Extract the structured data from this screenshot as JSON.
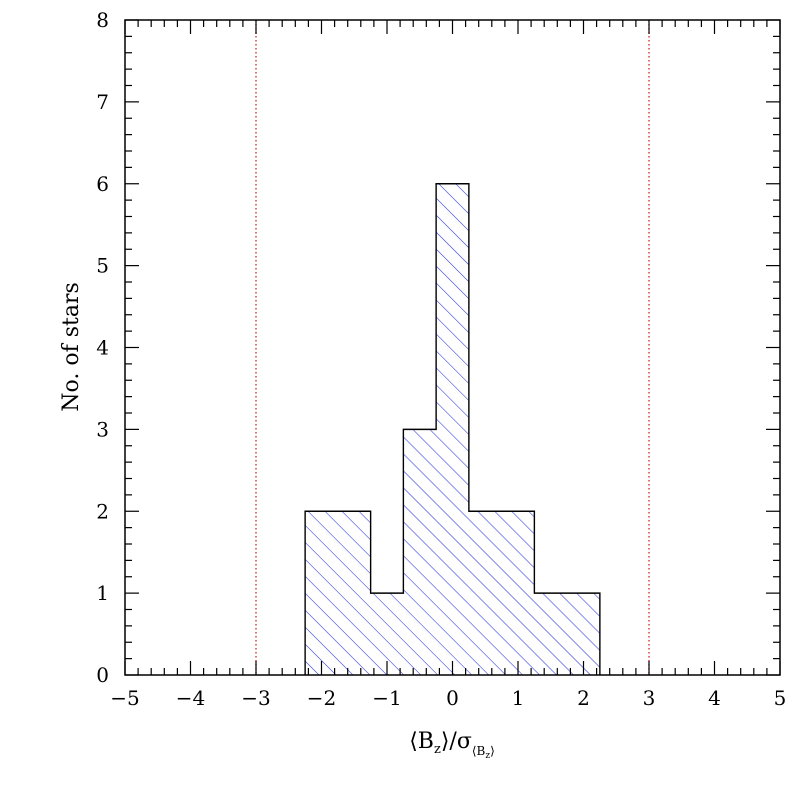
{
  "chart_data": {
    "type": "bar",
    "histogram": true,
    "bins": [
      {
        "x0": -2.25,
        "x1": -1.25,
        "count": 2
      },
      {
        "x0": -1.25,
        "x1": -0.75,
        "count": 1
      },
      {
        "x0": -0.75,
        "x1": -0.25,
        "count": 3
      },
      {
        "x0": -0.25,
        "x1": 0.25,
        "count": 6
      },
      {
        "x0": 0.25,
        "x1": 1.25,
        "count": 2
      },
      {
        "x0": 1.25,
        "x1": 2.25,
        "count": 1
      }
    ],
    "xlim": [
      -5,
      5
    ],
    "ylim": [
      0,
      8
    ],
    "xticks": [
      "−5",
      "−4",
      "−3",
      "−2",
      "−1",
      "0",
      "1",
      "2",
      "3",
      "4",
      "5"
    ],
    "yticks": [
      "0",
      "1",
      "2",
      "3",
      "4",
      "5",
      "6",
      "7",
      "8"
    ],
    "reference_lines": [
      -3,
      3
    ],
    "ylabel": "No. of stars",
    "xlabel": {
      "main": "⟨B",
      "sub": "z",
      "mid": "⟩/σ",
      "sub2": "⟨B",
      "sub2z": "z",
      "sub2end": "⟩"
    },
    "fill_pattern": "hatched",
    "hatch_color": "#2a35d8",
    "reference_line_color": "#e02020",
    "outline_color": "#000000"
  }
}
